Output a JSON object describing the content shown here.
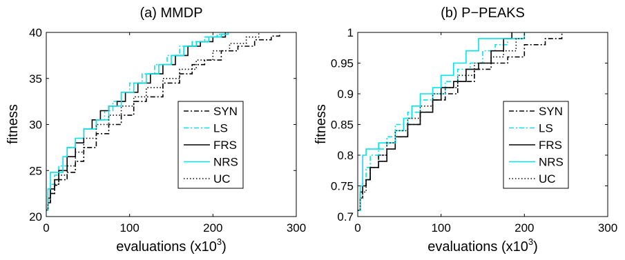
{
  "chart_data": [
    {
      "type": "line",
      "title": "(a) MMDP",
      "xlabel": "evaluations (x10",
      "xlabel_sup": "3",
      "xlabel_end": ")",
      "ylabel": "fitness",
      "xlim": [
        0,
        300
      ],
      "ylim": [
        20,
        40
      ],
      "xticks": [
        0,
        100,
        200,
        300
      ],
      "yticks": [
        20,
        25,
        30,
        35,
        40
      ],
      "legend_position": "center-right",
      "series": [
        {
          "name": "SYN",
          "color": "#000000",
          "dash": "dashdot",
          "x": [
            0,
            2,
            5,
            10,
            15,
            25,
            35,
            45,
            60,
            75,
            90,
            105,
            120,
            140,
            160,
            175,
            190,
            210,
            230,
            250,
            270,
            280
          ],
          "y": [
            20.7,
            21.5,
            22.5,
            23.4,
            24,
            24.8,
            26,
            27.5,
            29,
            30,
            31,
            32.5,
            33,
            34.5,
            35.5,
            36.5,
            37,
            38,
            38.5,
            39.2,
            39.6,
            40
          ]
        },
        {
          "name": "LS",
          "color": "#00e5ee",
          "dash": "dashdot",
          "x": [
            0,
            2,
            5,
            10,
            15,
            25,
            35,
            45,
            60,
            70,
            80,
            90,
            100,
            115,
            130,
            145,
            160,
            175,
            190,
            205,
            215
          ],
          "y": [
            20.7,
            22,
            23.5,
            24.5,
            25.5,
            27.5,
            28.5,
            29.5,
            30.5,
            31.5,
            32.5,
            33.5,
            34.5,
            35.5,
            36.5,
            37.5,
            38.5,
            39,
            39.5,
            39.8,
            40
          ]
        },
        {
          "name": "FRS",
          "color": "#000000",
          "dash": "solid",
          "x": [
            0,
            2,
            5,
            10,
            15,
            25,
            35,
            45,
            55,
            65,
            75,
            85,
            95,
            110,
            125,
            140,
            155,
            170,
            185,
            200,
            215
          ],
          "y": [
            20.7,
            22,
            23,
            24,
            25,
            26.5,
            28,
            29.5,
            30.5,
            31.5,
            32,
            32.5,
            33.5,
            34.5,
            35.5,
            36.5,
            37.5,
            38.5,
            39,
            39.5,
            40
          ]
        },
        {
          "name": "NRS",
          "color": "#00e5ee",
          "dash": "solid",
          "x": [
            0,
            2,
            5,
            10,
            15,
            20,
            25,
            35,
            45,
            60,
            75,
            90,
            105,
            120,
            135,
            150,
            165,
            180,
            195,
            210,
            218
          ],
          "y": [
            20.7,
            23,
            24.8,
            24.8,
            24.8,
            26.5,
            27.5,
            28.5,
            29.5,
            30.5,
            32,
            33.5,
            34.5,
            35.5,
            36.5,
            37.5,
            38.5,
            39,
            39.5,
            39.8,
            40
          ]
        },
        {
          "name": "UC",
          "color": "#000000",
          "dash": "dotted",
          "x": [
            0,
            2,
            5,
            10,
            15,
            25,
            35,
            45,
            60,
            75,
            90,
            105,
            120,
            140,
            160,
            180,
            200,
            220,
            240,
            255
          ],
          "y": [
            20.7,
            21.5,
            22.5,
            23.5,
            24.5,
            25.5,
            27,
            28.5,
            30,
            31,
            32,
            33,
            34,
            35,
            36,
            37,
            38,
            38.8,
            39.5,
            40
          ]
        }
      ]
    },
    {
      "type": "line",
      "title": "(b) P−PEAKS",
      "xlabel": "evaluations (x10",
      "xlabel_sup": "3",
      "xlabel_end": ")",
      "ylabel": "fitness",
      "xlim": [
        0,
        300
      ],
      "ylim": [
        0.7,
        1.0
      ],
      "xticks": [
        0,
        100,
        200,
        300
      ],
      "yticks": [
        0.7,
        0.75,
        0.8,
        0.85,
        0.9,
        0.95,
        1
      ],
      "legend_position": "center-right",
      "series": [
        {
          "name": "SYN",
          "color": "#000000",
          "dash": "dashdot",
          "x": [
            0,
            3,
            6,
            10,
            15,
            25,
            35,
            45,
            60,
            75,
            90,
            105,
            120,
            140,
            160,
            180,
            200,
            225,
            240,
            245
          ],
          "y": [
            0.71,
            0.73,
            0.75,
            0.76,
            0.78,
            0.8,
            0.82,
            0.83,
            0.85,
            0.87,
            0.89,
            0.9,
            0.92,
            0.94,
            0.95,
            0.96,
            0.98,
            0.99,
            0.99,
            1.0
          ]
        },
        {
          "name": "LS",
          "color": "#00e5ee",
          "dash": "dashdot",
          "x": [
            0,
            3,
            6,
            10,
            15,
            25,
            35,
            45,
            60,
            75,
            90,
            105,
            120,
            135,
            150,
            165,
            180,
            190,
            200
          ],
          "y": [
            0.71,
            0.74,
            0.76,
            0.78,
            0.8,
            0.81,
            0.83,
            0.85,
            0.87,
            0.89,
            0.9,
            0.92,
            0.94,
            0.95,
            0.97,
            0.98,
            0.99,
            0.99,
            1.0
          ]
        },
        {
          "name": "FRS",
          "color": "#000000",
          "dash": "solid",
          "x": [
            0,
            3,
            6,
            10,
            15,
            25,
            35,
            45,
            60,
            75,
            90,
            100,
            115,
            130,
            145,
            160,
            175,
            185
          ],
          "y": [
            0.71,
            0.74,
            0.75,
            0.76,
            0.78,
            0.79,
            0.81,
            0.83,
            0.85,
            0.87,
            0.89,
            0.91,
            0.92,
            0.94,
            0.95,
            0.97,
            0.99,
            1.0
          ]
        },
        {
          "name": "NRS",
          "color": "#00e5ee",
          "dash": "solid",
          "x": [
            0,
            3,
            6,
            10,
            15,
            25,
            35,
            45,
            55,
            65,
            75,
            90,
            100,
            115,
            130,
            145,
            160,
            175,
            185,
            200
          ],
          "y": [
            0.71,
            0.75,
            0.8,
            0.81,
            0.81,
            0.82,
            0.82,
            0.84,
            0.86,
            0.88,
            0.9,
            0.91,
            0.93,
            0.95,
            0.97,
            0.99,
            0.99,
            0.99,
            0.99,
            1.0
          ]
        },
        {
          "name": "UC",
          "color": "#000000",
          "dash": "dotted",
          "x": [
            0,
            3,
            6,
            10,
            15,
            25,
            35,
            45,
            60,
            75,
            90,
            105,
            120,
            140,
            160,
            175,
            190,
            200
          ],
          "y": [
            0.71,
            0.73,
            0.74,
            0.76,
            0.78,
            0.8,
            0.82,
            0.84,
            0.86,
            0.88,
            0.9,
            0.91,
            0.93,
            0.95,
            0.96,
            0.97,
            0.99,
            1.0
          ]
        }
      ]
    }
  ]
}
